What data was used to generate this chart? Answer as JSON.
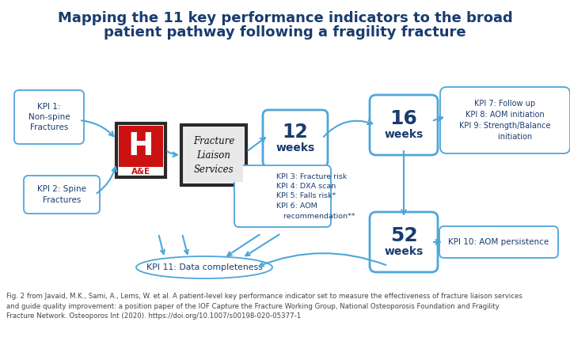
{
  "title_line1": "Mapping the 11 key performance indicators to the broad",
  "title_line2": "patient pathway following a fragility fracture",
  "title_fontsize": 13,
  "title_color": "#1a3c6e",
  "bg_color": "#ffffff",
  "arrow_color": "#4da6d9",
  "border_color": "#4da6d9",
  "kpi1_text": "KPI 1:\nNon-spine\nFractures",
  "kpi2_text": "KPI 2: Spine\nFractures",
  "kpi_3to6_text": "KPI 3: Fracture risk\nKPI 4: DXA scan\nKPI 5: Falls risk*\nKPI 6: AOM\n   recommendation**",
  "kpi_7to9_text": "KPI 7: Follow up\nKPI 8: AOM initiation\nKPI 9: Strength/Balance\n        initiation",
  "kpi10_text": "KPI 10: AOM persistence",
  "kpi11_text": "KPI 11: Data completeness",
  "weeks12_big": "12",
  "weeks12_small": "weeks",
  "weeks16_big": "16",
  "weeks16_small": "weeks",
  "weeks52_big": "52",
  "weeks52_small": "weeks",
  "fls_text": "Fracture\nLiaison\nServices",
  "ae_letter": "H",
  "ae_sub": "A&E",
  "caption": "Fig. 2 from Javaid, M.K., Sami, A., Lems, W. et al. A patient-level key performance indicator set to measure the effectiveness of fracture liaison services\nand guide quality improvement: a position paper of the IOF Capture the Fracture Working Group, National Osteoporosis Foundation and Fragility\nFracture Network. Osteoporos Int (2020). https://doi.org/10.1007/s00198-020-05377-1",
  "caption_fontsize": 6.2,
  "caption_color": "#444444",
  "text_color": "#1a3c6e"
}
